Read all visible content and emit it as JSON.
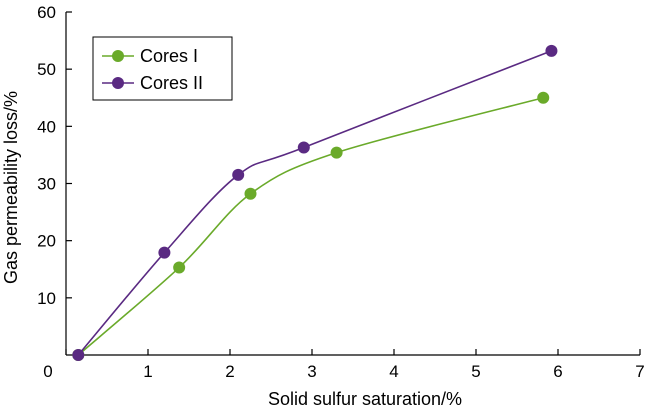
{
  "chart_data": {
    "type": "line",
    "title": "",
    "xlabel": "Solid sulfur saturation/%",
    "ylabel": "Gas permeability loss/%",
    "xlim": [
      0,
      7
    ],
    "ylim": [
      0,
      60
    ],
    "x_ticks": [
      0,
      1,
      2,
      3,
      4,
      5,
      6,
      7
    ],
    "y_ticks": [
      10,
      20,
      30,
      40,
      50,
      60
    ],
    "grid": false,
    "legend_position": "top-left",
    "series": [
      {
        "name": "Cores I",
        "color": "#6aaa2a",
        "x": [
          0.15,
          1.38,
          2.25,
          3.3,
          5.82
        ],
        "y": [
          0,
          15.3,
          28.2,
          35.4,
          45.0
        ]
      },
      {
        "name": "Cores II",
        "color": "#5a2a82",
        "x": [
          0.15,
          1.2,
          2.1,
          2.9,
          5.92
        ],
        "y": [
          0,
          17.9,
          31.5,
          36.3,
          53.2
        ]
      }
    ]
  }
}
